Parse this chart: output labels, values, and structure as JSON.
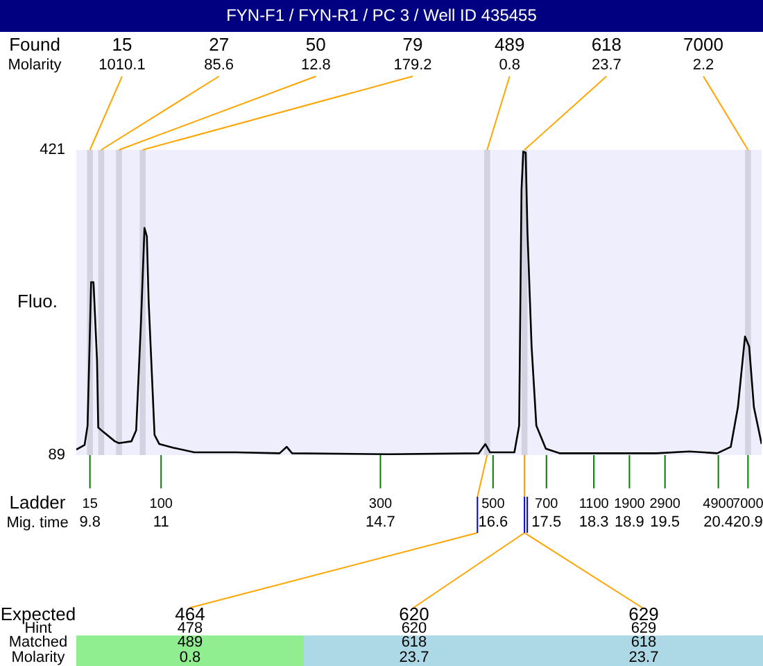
{
  "chart_data": [
    {
      "type": "line",
      "title": "FYN-F1 / FYN-R1 / PC 3 / Well ID 435455",
      "xlabel": "Mig. time",
      "ylabel": "Fluo.",
      "x": [
        9.57,
        9.71,
        9.76,
        9.82,
        9.86,
        9.92,
        9.94,
        10.03,
        10.22,
        10.29,
        10.5,
        10.58,
        10.66,
        10.72,
        10.76,
        10.79,
        10.89,
        10.97,
        11.21,
        11.56,
        12.26,
        13.0,
        13.12,
        13.21,
        14.84,
        16.36,
        16.47,
        16.55,
        16.96,
        17.04,
        17.08,
        17.11,
        17.15,
        17.18,
        17.25,
        17.33,
        17.49,
        17.72,
        19.36,
        19.91,
        20.38,
        20.61,
        20.73,
        20.85,
        20.92,
        21.0,
        21.13
      ],
      "series": [
        {
          "color": "#000000",
          "values": [
            95,
            100,
            121,
            277,
            277,
            192,
            119,
            114,
            104,
            102,
            104,
            116,
            232,
            336,
            327,
            257,
            111,
            101,
            97,
            92,
            92,
            91,
            98,
            91,
            90,
            91,
            101,
            92,
            92,
            121,
            378,
            419,
            418,
            332,
            207,
            121,
            96,
            91,
            91,
            93,
            91,
            98,
            141,
            218,
            207,
            141,
            101
          ]
        }
      ],
      "xlim": [
        9.57,
        21.13
      ],
      "xticks": [
        9.8,
        11,
        14.7,
        16.6,
        17.5,
        18.3,
        18.9,
        19.5,
        20.4,
        20.9
      ],
      "ylim": [
        89,
        421
      ],
      "yticks": [
        89,
        421
      ],
      "grid": false,
      "legend": false,
      "marker": "none",
      "bands": [
        {
          "axis": "x",
          "from": 9.75,
          "to": 9.85,
          "label": "15",
          "color": "#d2d2e0"
        },
        {
          "axis": "x",
          "from": 9.94,
          "to": 10.04,
          "label": "27",
          "color": "#d2d2e0"
        },
        {
          "axis": "x",
          "from": 10.24,
          "to": 10.34,
          "label": "50",
          "color": "#d2d2e0"
        },
        {
          "axis": "x",
          "from": 10.64,
          "to": 10.74,
          "label": "79",
          "color": "#d2d2e0"
        },
        {
          "axis": "x",
          "from": 16.45,
          "to": 16.55,
          "label": "489",
          "color": "#d2d2e0"
        },
        {
          "axis": "x",
          "from": 17.08,
          "to": 17.18,
          "label": "618",
          "color": "#d2d2e0"
        },
        {
          "axis": "x",
          "from": 20.85,
          "to": 20.95,
          "label": "7000",
          "color": "#d2d2e0"
        }
      ],
      "annotations": [
        "Found",
        "Molarity",
        "Ladder",
        {
          "text": "1010.1",
          "x": 9.8,
          "y": 421
        },
        {
          "text": "85.6",
          "x": 9.99,
          "y": 421
        },
        {
          "text": "12.8",
          "x": 10.29,
          "y": 421
        },
        {
          "text": "179.2",
          "x": 10.69,
          "y": 421
        },
        {
          "text": "0.8",
          "x": 16.5,
          "y": 421
        },
        {
          "text": "23.7",
          "x": 17.13,
          "y": 421
        },
        {
          "text": "2.2",
          "x": 20.9,
          "y": 421
        },
        {
          "text": "15",
          "x": 9.8,
          "y": 89
        },
        {
          "text": "100",
          "x": 11,
          "y": 101
        },
        {
          "text": "300",
          "x": 14.7,
          "y": 89
        },
        {
          "text": "500",
          "x": 16.6,
          "y": 89
        },
        {
          "text": "700",
          "x": 17.5,
          "y": 89
        },
        {
          "text": "1100",
          "x": 18.3,
          "y": 89
        },
        {
          "text": "1900",
          "x": 18.9,
          "y": 89
        },
        {
          "text": "2900",
          "x": 19.5,
          "y": 89
        },
        {
          "text": "4900",
          "x": 20.4,
          "y": 89
        },
        {
          "text": "7000",
          "x": 20.9,
          "y": 89
        }
      ]
    },
    {
      "type": "other",
      "annotations": [
        "Expected",
        "Hint",
        "Matched",
        "Molarity",
        "464",
        "478",
        "489",
        "0.8",
        "620",
        "620",
        "618",
        "23.7",
        "629",
        "629",
        "618",
        "23.7"
      ]
    }
  ]
}
